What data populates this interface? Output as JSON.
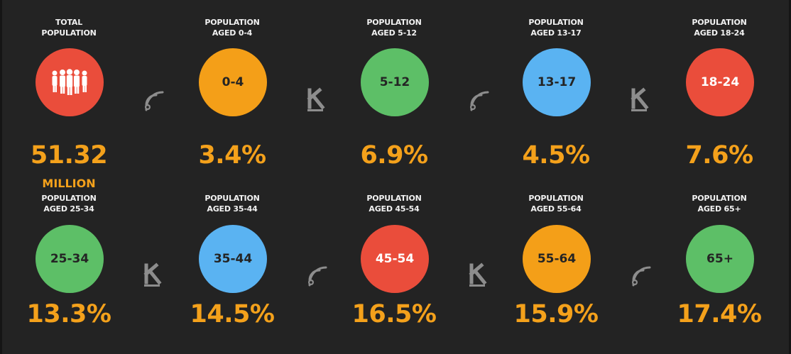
{
  "colors": {
    "background": "#232323",
    "accent": "#f4a11b",
    "red": "#ea4d3b",
    "orange": "#f49f18",
    "green": "#5dbf67",
    "blue": "#5ab3f2"
  },
  "icons": {
    "people": "people-icon",
    "signal": "signal-icon",
    "logo": "k-logo-icon"
  },
  "cards": [
    {
      "label_line1": "TOTAL",
      "label_line2": "POPULATION",
      "circle_text": "",
      "circle_icon": "people-icon",
      "value": "51.32",
      "unit": "MILLION",
      "color": "#ea4d3b"
    },
    {
      "label_line1": "POPULATION",
      "label_line2": "AGED 0-4",
      "circle_text": "0-4",
      "value": "3.4%",
      "color": "#f49f18"
    },
    {
      "label_line1": "POPULATION",
      "label_line2": "AGED 5-12",
      "circle_text": "5-12",
      "value": "6.9%",
      "color": "#5dbf67"
    },
    {
      "label_line1": "POPULATION",
      "label_line2": "AGED 13-17",
      "circle_text": "13-17",
      "value": "4.5%",
      "color": "#5ab3f2"
    },
    {
      "label_line1": "POPULATION",
      "label_line2": "AGED 18-24",
      "circle_text": "18-24",
      "value": "7.6%",
      "color": "#ea4d3b"
    },
    {
      "label_line1": "POPULATION",
      "label_line2": "AGED 25-34",
      "circle_text": "25-34",
      "value": "13.3%",
      "color": "#5dbf67"
    },
    {
      "label_line1": "POPULATION",
      "label_line2": "AGED 35-44",
      "circle_text": "35-44",
      "value": "14.5%",
      "color": "#5ab3f2"
    },
    {
      "label_line1": "POPULATION",
      "label_line2": "AGED 45-54",
      "circle_text": "45-54",
      "value": "16.5%",
      "color": "#ea4d3b"
    },
    {
      "label_line1": "POPULATION",
      "label_line2": "AGED 55-64",
      "circle_text": "55-64",
      "value": "15.9%",
      "color": "#f49f18"
    },
    {
      "label_line1": "POPULATION",
      "label_line2": "AGED 65+",
      "circle_text": "65+",
      "value": "17.4%",
      "color": "#5dbf67"
    }
  ]
}
